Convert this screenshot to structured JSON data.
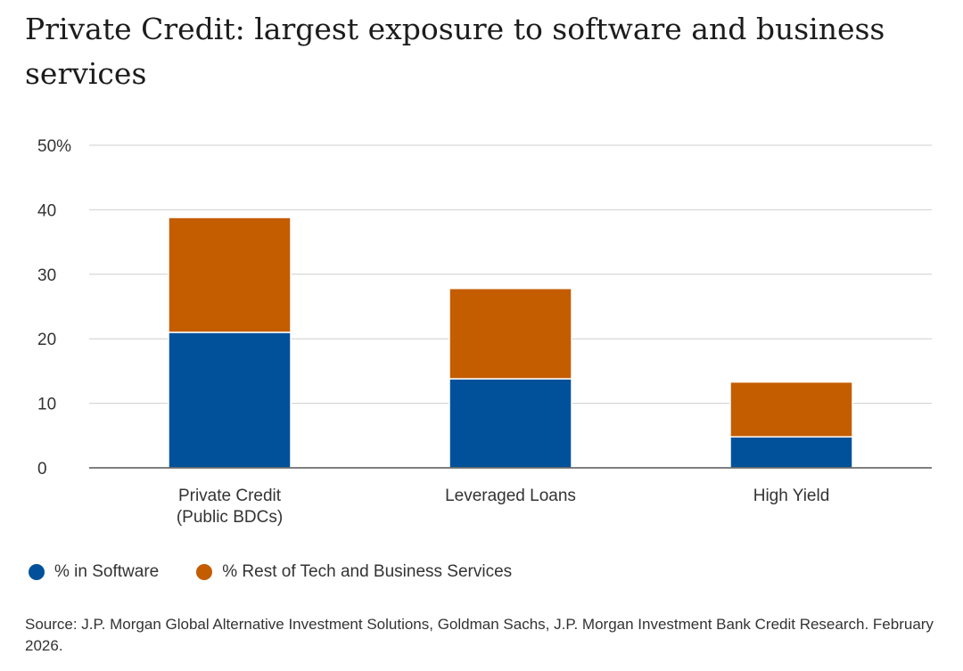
{
  "title": "Private Credit: largest exposure to software and business services",
  "source": "Source: J.P. Morgan Global Alternative Investment Solutions, Goldman Sachs, J.P. Morgan Investment Bank Credit Research. February 2026.",
  "chart_data": {
    "type": "bar",
    "stacked": true,
    "categories": [
      "Private Credit (Public BDCs)",
      "Leveraged Loans",
      "High Yield"
    ],
    "category_lines": [
      [
        "Private Credit",
        "(Public BDCs)"
      ],
      [
        "Leveraged Loans"
      ],
      [
        "High Yield"
      ]
    ],
    "series": [
      {
        "name": "% in Software",
        "color": "#00519a",
        "values": [
          21,
          13.8,
          4.8
        ]
      },
      {
        "name": "% Rest of Tech and Business Services",
        "color": "#c45c00",
        "values": [
          17.8,
          14,
          8.5
        ]
      }
    ],
    "ylim": [
      0,
      50
    ],
    "yticks": [
      0,
      10,
      20,
      30,
      40,
      50
    ],
    "ytick_labels": [
      "0",
      "10",
      "20",
      "30",
      "40",
      "50%"
    ],
    "grid": true,
    "legend_position": "bottom-left"
  }
}
